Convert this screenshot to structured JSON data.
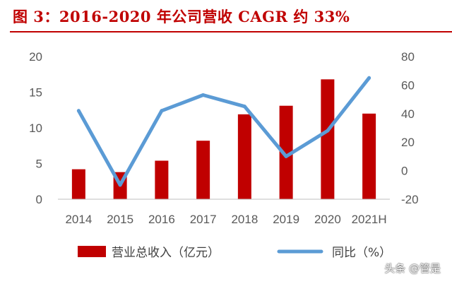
{
  "figure": {
    "title": "图 3：2016-2020 年公司营收 CAGR 约 33%",
    "title_color": "#c00000"
  },
  "watermark": "头条 @管是",
  "chart_data": {
    "type": "bar+line",
    "title": "图 3：2016-2020 年公司营收 CAGR 约 33%",
    "categories": [
      "2014",
      "2015",
      "2016",
      "2017",
      "2018",
      "2019",
      "2020",
      "2021H"
    ],
    "series": [
      {
        "name": "营业总收入（亿元）",
        "type": "bar",
        "axis": "left",
        "color": "#c00000",
        "values": [
          4.2,
          3.8,
          5.4,
          8.2,
          11.9,
          13.1,
          16.8,
          12.0
        ]
      },
      {
        "name": "同比（%）",
        "type": "line",
        "axis": "right",
        "color": "#5b9bd5",
        "values": [
          42,
          -10,
          42,
          53,
          45,
          10,
          28,
          65
        ]
      }
    ],
    "y_left": {
      "ylim": [
        0,
        20
      ],
      "ticks": [
        "0",
        "5",
        "10",
        "15",
        "20"
      ]
    },
    "y_right": {
      "ylim": [
        -20,
        80
      ],
      "ticks": [
        "-20",
        "0",
        "20",
        "40",
        "60",
        "80"
      ]
    },
    "grid": false,
    "legend": "bottom"
  }
}
